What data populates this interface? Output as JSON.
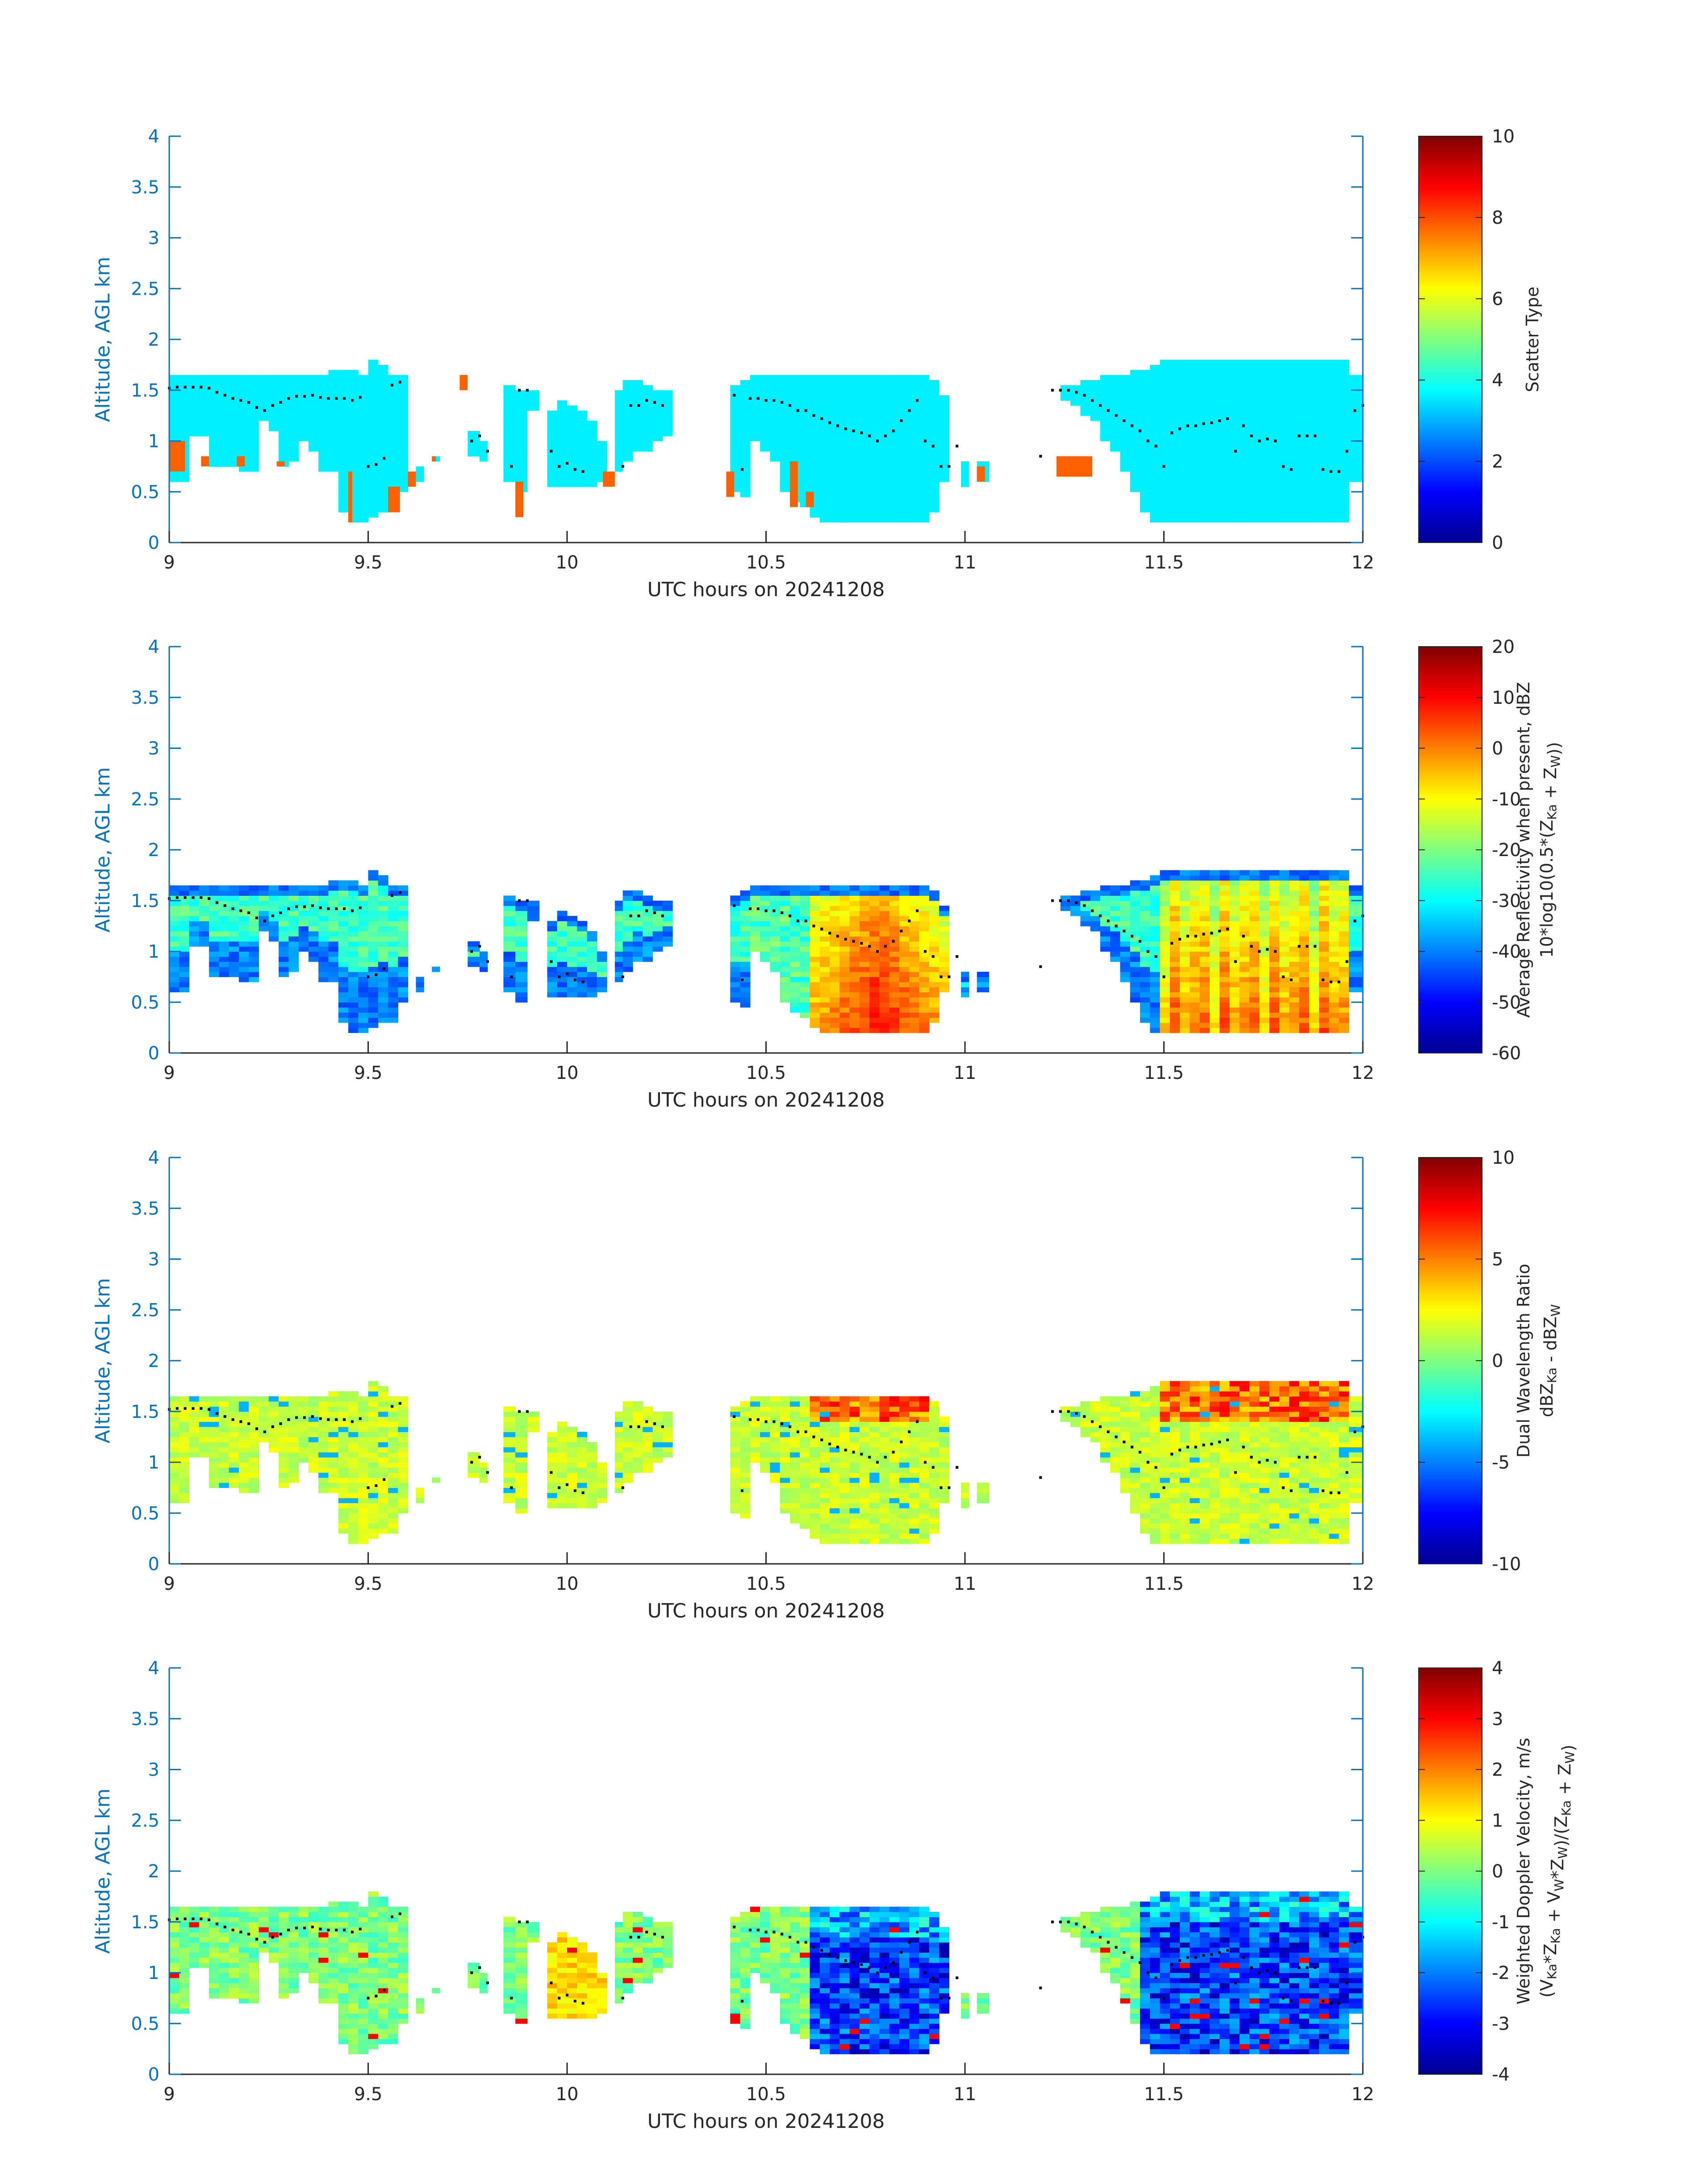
{
  "figure": {
    "background": "#ffffff",
    "axis_color": "#0072bd",
    "label_color_y": "#0072bd",
    "label_color_x": "#262626",
    "tick_text_color": "#262626",
    "colormap": "jet",
    "overlay_dot_color": "#000000"
  },
  "chart_data": [
    {
      "type": "heatmap",
      "title": "",
      "xlabel": "UTC hours on 20241208",
      "ylabel": "Altitude, AGL km",
      "xlim": [
        9,
        12
      ],
      "ylim": [
        0,
        4
      ],
      "xticks": [
        "9",
        "9.5",
        "10",
        "10.5",
        "11",
        "11.5",
        "12"
      ],
      "yticks": [
        "0",
        "0.5",
        "1",
        "1.5",
        "2",
        "2.5",
        "3",
        "3.5",
        "4"
      ],
      "colorbar": {
        "label_lines": [
          "Scatter Type"
        ],
        "range": [
          0,
          10
        ],
        "ticks": [
          "0",
          "2",
          "4",
          "6",
          "8",
          "10"
        ]
      },
      "field": "scatter_type",
      "dominant_value": 3.6,
      "secondary_value": 7.8,
      "secondary_regions": [
        [
          9.0,
          9.04,
          0.7,
          1.0
        ],
        [
          9.08,
          9.1,
          0.75,
          0.85
        ],
        [
          9.17,
          9.19,
          0.75,
          0.85
        ],
        [
          9.27,
          9.29,
          0.75,
          0.8
        ],
        [
          9.45,
          9.46,
          0.2,
          0.7
        ],
        [
          9.55,
          9.58,
          0.3,
          0.55
        ],
        [
          9.6,
          9.62,
          0.55,
          0.7
        ],
        [
          9.66,
          9.67,
          0.8,
          0.85
        ],
        [
          9.73,
          9.75,
          1.5,
          1.65
        ],
        [
          9.87,
          9.89,
          0.25,
          0.6
        ],
        [
          10.09,
          10.12,
          0.55,
          0.7
        ],
        [
          10.4,
          10.42,
          0.45,
          0.7
        ],
        [
          10.56,
          10.58,
          0.35,
          0.8
        ],
        [
          10.6,
          10.62,
          0.35,
          0.5
        ],
        [
          11.03,
          11.05,
          0.6,
          0.75
        ],
        [
          11.23,
          11.32,
          0.65,
          0.85
        ]
      ]
    },
    {
      "type": "heatmap",
      "title": "",
      "xlabel": "UTC hours on 20241208",
      "ylabel": "Altitude, AGL km",
      "xlim": [
        9,
        12
      ],
      "ylim": [
        0,
        4
      ],
      "xticks": [
        "9",
        "9.5",
        "10",
        "10.5",
        "11",
        "11.5",
        "12"
      ],
      "yticks": [
        "0",
        "0.5",
        "1",
        "1.5",
        "2",
        "2.5",
        "3",
        "3.5",
        "4"
      ],
      "colorbar": {
        "label_lines": [
          "Average Reflectivity when present, dBZ",
          "10*log10(0.5*(Z_Ka + Z_W))"
        ],
        "range": [
          -60,
          20
        ],
        "ticks": [
          "-60",
          "-50",
          "-40",
          "-30",
          "-20",
          "-10",
          "0",
          "10",
          "20"
        ]
      },
      "field": "reflectivity"
    },
    {
      "type": "heatmap",
      "title": "",
      "xlabel": "UTC hours on 20241208",
      "ylabel": "Altitude, AGL km",
      "xlim": [
        9,
        12
      ],
      "ylim": [
        0,
        4
      ],
      "xticks": [
        "9",
        "9.5",
        "10",
        "10.5",
        "11",
        "11.5",
        "12"
      ],
      "yticks": [
        "0",
        "0.5",
        "1",
        "1.5",
        "2",
        "2.5",
        "3",
        "3.5",
        "4"
      ],
      "colorbar": {
        "label_lines": [
          "Dual Wavelength Ratio",
          "dBZ_Ka - dBZ_W"
        ],
        "range": [
          -10,
          10
        ],
        "ticks": [
          "-10",
          "-5",
          "0",
          "5",
          "10"
        ]
      },
      "field": "dwr"
    },
    {
      "type": "heatmap",
      "title": "",
      "xlabel": "UTC hours on 20241208",
      "ylabel": "Altitude, AGL km",
      "xlim": [
        9,
        12
      ],
      "ylim": [
        0,
        4
      ],
      "xticks": [
        "9",
        "9.5",
        "10",
        "10.5",
        "11",
        "11.5",
        "12"
      ],
      "yticks": [
        "0",
        "0.5",
        "1",
        "1.5",
        "2",
        "2.5",
        "3",
        "3.5",
        "4"
      ],
      "colorbar": {
        "label_lines": [
          "Weighted Doppler Velocity, m/s",
          "(V_Ka*Z_Ka + V_W*Z_W)/(Z_Ka + Z_W)"
        ],
        "range": [
          -4,
          4
        ],
        "ticks": [
          "-4",
          "-3",
          "-2",
          "-1",
          "0",
          "1",
          "2",
          "3",
          "4"
        ]
      },
      "field": "velocity"
    }
  ],
  "cloud_mask": {
    "time_step_h": 0.025,
    "columns": [
      [
        9.0,
        9.025,
        0.6,
        1.65
      ],
      [
        9.025,
        9.05,
        0.6,
        1.65
      ],
      [
        9.05,
        9.075,
        1.05,
        1.65
      ],
      [
        9.075,
        9.1,
        1.05,
        1.65
      ],
      [
        9.1,
        9.125,
        0.75,
        1.65
      ],
      [
        9.125,
        9.15,
        0.75,
        1.65
      ],
      [
        9.15,
        9.175,
        0.75,
        1.65
      ],
      [
        9.175,
        9.2,
        0.7,
        1.65
      ],
      [
        9.2,
        9.225,
        0.7,
        1.65
      ],
      [
        9.225,
        9.25,
        1.2,
        1.65
      ],
      [
        9.25,
        9.275,
        1.1,
        1.65
      ],
      [
        9.275,
        9.3,
        0.75,
        1.65
      ],
      [
        9.3,
        9.325,
        0.8,
        1.65
      ],
      [
        9.325,
        9.35,
        1.0,
        1.65
      ],
      [
        9.35,
        9.375,
        0.9,
        1.65
      ],
      [
        9.375,
        9.4,
        0.7,
        1.65
      ],
      [
        9.4,
        9.425,
        0.7,
        1.7
      ],
      [
        9.425,
        9.45,
        0.3,
        1.7
      ],
      [
        9.45,
        9.475,
        0.2,
        1.7
      ],
      [
        9.475,
        9.5,
        0.2,
        1.65
      ],
      [
        9.5,
        9.525,
        0.25,
        1.8
      ],
      [
        9.525,
        9.55,
        0.3,
        1.75
      ],
      [
        9.55,
        9.575,
        0.3,
        1.65
      ],
      [
        9.575,
        9.6,
        0.5,
        1.65
      ],
      [
        9.62,
        9.64,
        0.6,
        0.75
      ],
      [
        9.66,
        9.68,
        0.8,
        0.85
      ],
      [
        9.75,
        9.78,
        0.85,
        1.1
      ],
      [
        9.78,
        9.8,
        0.8,
        1.0
      ],
      [
        9.84,
        9.87,
        0.6,
        1.55
      ],
      [
        9.87,
        9.9,
        0.5,
        1.5
      ],
      [
        9.9,
        9.93,
        1.3,
        1.5
      ],
      [
        9.95,
        9.975,
        0.55,
        1.3
      ],
      [
        9.975,
        10.0,
        0.55,
        1.4
      ],
      [
        10.0,
        10.025,
        0.55,
        1.35
      ],
      [
        10.025,
        10.05,
        0.55,
        1.3
      ],
      [
        10.05,
        10.075,
        0.55,
        1.2
      ],
      [
        10.075,
        10.1,
        0.6,
        1.0
      ],
      [
        10.12,
        10.14,
        0.7,
        1.5
      ],
      [
        10.14,
        10.165,
        0.8,
        1.6
      ],
      [
        10.165,
        10.19,
        0.9,
        1.6
      ],
      [
        10.19,
        10.215,
        0.9,
        1.55
      ],
      [
        10.215,
        10.24,
        1.0,
        1.5
      ],
      [
        10.24,
        10.265,
        1.05,
        1.5
      ],
      [
        10.41,
        10.435,
        0.5,
        1.55
      ],
      [
        10.435,
        10.46,
        0.45,
        1.6
      ],
      [
        10.46,
        10.485,
        1.0,
        1.65
      ],
      [
        10.485,
        10.51,
        0.9,
        1.65
      ],
      [
        10.51,
        10.535,
        0.8,
        1.65
      ],
      [
        10.535,
        10.56,
        0.5,
        1.65
      ],
      [
        10.56,
        10.585,
        0.4,
        1.65
      ],
      [
        10.585,
        10.61,
        0.35,
        1.65
      ],
      [
        10.61,
        10.635,
        0.25,
        1.65
      ],
      [
        10.635,
        10.66,
        0.2,
        1.65
      ],
      [
        10.66,
        10.685,
        0.2,
        1.65
      ],
      [
        10.685,
        10.71,
        0.2,
        1.65
      ],
      [
        10.71,
        10.735,
        0.2,
        1.65
      ],
      [
        10.735,
        10.76,
        0.2,
        1.65
      ],
      [
        10.76,
        10.785,
        0.2,
        1.65
      ],
      [
        10.785,
        10.81,
        0.2,
        1.65
      ],
      [
        10.81,
        10.835,
        0.2,
        1.65
      ],
      [
        10.835,
        10.86,
        0.2,
        1.65
      ],
      [
        10.86,
        10.885,
        0.2,
        1.65
      ],
      [
        10.885,
        10.91,
        0.2,
        1.65
      ],
      [
        10.91,
        10.935,
        0.3,
        1.6
      ],
      [
        10.935,
        10.96,
        0.6,
        1.45
      ],
      [
        10.99,
        11.01,
        0.55,
        0.8
      ],
      [
        11.03,
        11.06,
        0.6,
        0.8
      ],
      [
        11.24,
        11.265,
        1.4,
        1.55
      ],
      [
        11.265,
        11.29,
        1.35,
        1.55
      ],
      [
        11.29,
        11.315,
        1.25,
        1.6
      ],
      [
        11.315,
        11.34,
        1.2,
        1.6
      ],
      [
        11.34,
        11.365,
        1.0,
        1.65
      ],
      [
        11.365,
        11.39,
        0.9,
        1.65
      ],
      [
        11.39,
        11.415,
        0.7,
        1.65
      ],
      [
        11.415,
        11.44,
        0.5,
        1.7
      ],
      [
        11.44,
        11.465,
        0.3,
        1.7
      ],
      [
        11.465,
        11.49,
        0.2,
        1.75
      ],
      [
        11.49,
        11.515,
        0.2,
        1.8
      ],
      [
        11.515,
        11.54,
        0.2,
        1.8
      ],
      [
        11.54,
        11.565,
        0.2,
        1.8
      ],
      [
        11.565,
        11.59,
        0.2,
        1.8
      ],
      [
        11.59,
        11.615,
        0.2,
        1.8
      ],
      [
        11.615,
        11.64,
        0.2,
        1.8
      ],
      [
        11.64,
        11.665,
        0.2,
        1.8
      ],
      [
        11.665,
        11.69,
        0.2,
        1.8
      ],
      [
        11.69,
        11.715,
        0.2,
        1.8
      ],
      [
        11.715,
        11.74,
        0.2,
        1.8
      ],
      [
        11.74,
        11.765,
        0.2,
        1.8
      ],
      [
        11.765,
        11.79,
        0.2,
        1.8
      ],
      [
        11.79,
        11.815,
        0.2,
        1.8
      ],
      [
        11.815,
        11.84,
        0.2,
        1.8
      ],
      [
        11.84,
        11.865,
        0.2,
        1.8
      ],
      [
        11.865,
        11.89,
        0.2,
        1.8
      ],
      [
        11.89,
        11.915,
        0.2,
        1.8
      ],
      [
        11.915,
        11.94,
        0.2,
        1.8
      ],
      [
        11.94,
        11.965,
        0.2,
        1.8
      ],
      [
        11.965,
        12.0,
        0.6,
        1.65
      ]
    ],
    "dots": [
      [
        9.0,
        1.52
      ],
      [
        9.02,
        1.53
      ],
      [
        9.04,
        1.53
      ],
      [
        9.06,
        1.53
      ],
      [
        9.08,
        1.53
      ],
      [
        9.1,
        1.52
      ],
      [
        9.12,
        1.48
      ],
      [
        9.14,
        1.45
      ],
      [
        9.16,
        1.42
      ],
      [
        9.18,
        1.4
      ],
      [
        9.2,
        1.38
      ],
      [
        9.22,
        1.33
      ],
      [
        9.24,
        1.3
      ],
      [
        9.26,
        1.35
      ],
      [
        9.28,
        1.38
      ],
      [
        9.3,
        1.42
      ],
      [
        9.32,
        1.44
      ],
      [
        9.34,
        1.44
      ],
      [
        9.36,
        1.45
      ],
      [
        9.38,
        1.43
      ],
      [
        9.4,
        1.42
      ],
      [
        9.42,
        1.42
      ],
      [
        9.44,
        1.42
      ],
      [
        9.46,
        1.4
      ],
      [
        9.48,
        1.43
      ],
      [
        9.5,
        0.75
      ],
      [
        9.52,
        0.77
      ],
      [
        9.54,
        0.83
      ],
      [
        9.56,
        1.55
      ],
      [
        9.58,
        1.58
      ],
      [
        9.76,
        1.0
      ],
      [
        9.78,
        1.05
      ],
      [
        9.8,
        0.9
      ],
      [
        9.86,
        0.75
      ],
      [
        9.88,
        1.5
      ],
      [
        9.9,
        1.5
      ],
      [
        9.96,
        0.9
      ],
      [
        9.98,
        0.75
      ],
      [
        10.0,
        0.78
      ],
      [
        10.02,
        0.72
      ],
      [
        10.04,
        0.7
      ],
      [
        10.14,
        0.75
      ],
      [
        10.16,
        1.35
      ],
      [
        10.18,
        1.35
      ],
      [
        10.2,
        1.4
      ],
      [
        10.22,
        1.38
      ],
      [
        10.24,
        1.35
      ],
      [
        10.42,
        1.45
      ],
      [
        10.44,
        0.72
      ],
      [
        10.46,
        1.42
      ],
      [
        10.48,
        1.42
      ],
      [
        10.5,
        1.4
      ],
      [
        10.52,
        1.4
      ],
      [
        10.54,
        1.38
      ],
      [
        10.56,
        1.35
      ],
      [
        10.58,
        1.3
      ],
      [
        10.6,
        1.3
      ],
      [
        10.62,
        1.25
      ],
      [
        10.64,
        1.22
      ],
      [
        10.66,
        1.18
      ],
      [
        10.68,
        1.15
      ],
      [
        10.7,
        1.12
      ],
      [
        10.72,
        1.1
      ],
      [
        10.74,
        1.08
      ],
      [
        10.76,
        1.05
      ],
      [
        10.78,
        1.0
      ],
      [
        10.8,
        1.05
      ],
      [
        10.82,
        1.1
      ],
      [
        10.84,
        1.2
      ],
      [
        10.86,
        1.3
      ],
      [
        10.88,
        1.4
      ],
      [
        10.9,
        1.0
      ],
      [
        10.92,
        0.95
      ],
      [
        10.94,
        0.75
      ],
      [
        10.96,
        0.75
      ],
      [
        10.98,
        0.95
      ],
      [
        11.19,
        0.85
      ],
      [
        11.22,
        1.5
      ],
      [
        11.24,
        1.5
      ],
      [
        11.26,
        1.5
      ],
      [
        11.28,
        1.48
      ],
      [
        11.3,
        1.45
      ],
      [
        11.32,
        1.4
      ],
      [
        11.34,
        1.35
      ],
      [
        11.36,
        1.3
      ],
      [
        11.38,
        1.25
      ],
      [
        11.4,
        1.2
      ],
      [
        11.42,
        1.15
      ],
      [
        11.44,
        1.1
      ],
      [
        11.46,
        1.0
      ],
      [
        11.48,
        0.95
      ],
      [
        11.5,
        0.75
      ],
      [
        11.52,
        1.08
      ],
      [
        11.54,
        1.12
      ],
      [
        11.56,
        1.15
      ],
      [
        11.58,
        1.15
      ],
      [
        11.6,
        1.17
      ],
      [
        11.62,
        1.18
      ],
      [
        11.64,
        1.2
      ],
      [
        11.66,
        1.22
      ],
      [
        11.68,
        0.9
      ],
      [
        11.7,
        1.15
      ],
      [
        11.72,
        1.05
      ],
      [
        11.74,
        1.0
      ],
      [
        11.76,
        1.02
      ],
      [
        11.78,
        1.0
      ],
      [
        11.8,
        0.75
      ],
      [
        11.82,
        0.72
      ],
      [
        11.84,
        1.05
      ],
      [
        11.86,
        1.05
      ],
      [
        11.88,
        1.05
      ],
      [
        11.9,
        0.72
      ],
      [
        11.92,
        0.7
      ],
      [
        11.94,
        0.7
      ],
      [
        11.96,
        0.9
      ],
      [
        11.98,
        1.3
      ],
      [
        12.0,
        1.35
      ]
    ]
  }
}
